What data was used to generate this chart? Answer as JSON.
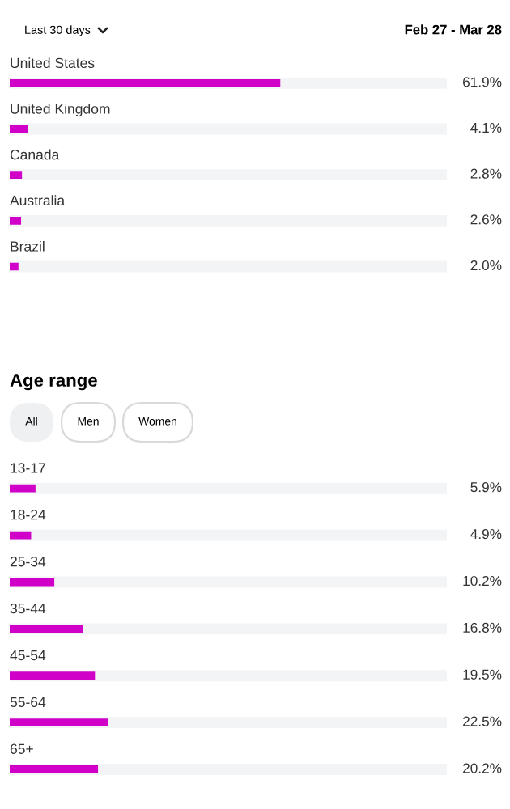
{
  "chart_data": [
    {
      "type": "bar",
      "orientation": "horizontal",
      "categories": [
        "United States",
        "United Kingdom",
        "Canada",
        "Australia",
        "Brazil"
      ],
      "values": [
        61.9,
        4.1,
        2.8,
        2.6,
        2.0
      ],
      "value_labels": [
        "61.9%",
        "4.1%",
        "2.8%",
        "2.6%",
        "2.0%"
      ],
      "color": "#d000c8",
      "xlim": [
        0,
        100
      ],
      "tick_labels": false,
      "grid": "y",
      "annotations": [
        "Last 30 days",
        "Feb 27 - Mar 28"
      ]
    },
    {
      "type": "bar",
      "orientation": "horizontal",
      "title": "Age range",
      "categories": [
        "13-17",
        "18-24",
        "25-34",
        "35-44",
        "45-54",
        "55-64",
        "65+"
      ],
      "values": [
        5.9,
        4.9,
        10.2,
        16.8,
        19.5,
        22.5,
        20.2
      ],
      "value_labels": [
        "5.9%",
        "4.9%",
        "10.2%",
        "16.8%",
        "19.5%",
        "22.5%",
        "20.2%"
      ],
      "color": "#d000c8",
      "xlim": [
        0,
        100
      ],
      "tick_labels": false,
      "grid": "y",
      "annotations": [
        "All",
        "Men",
        "Women"
      ]
    }
  ]
}
